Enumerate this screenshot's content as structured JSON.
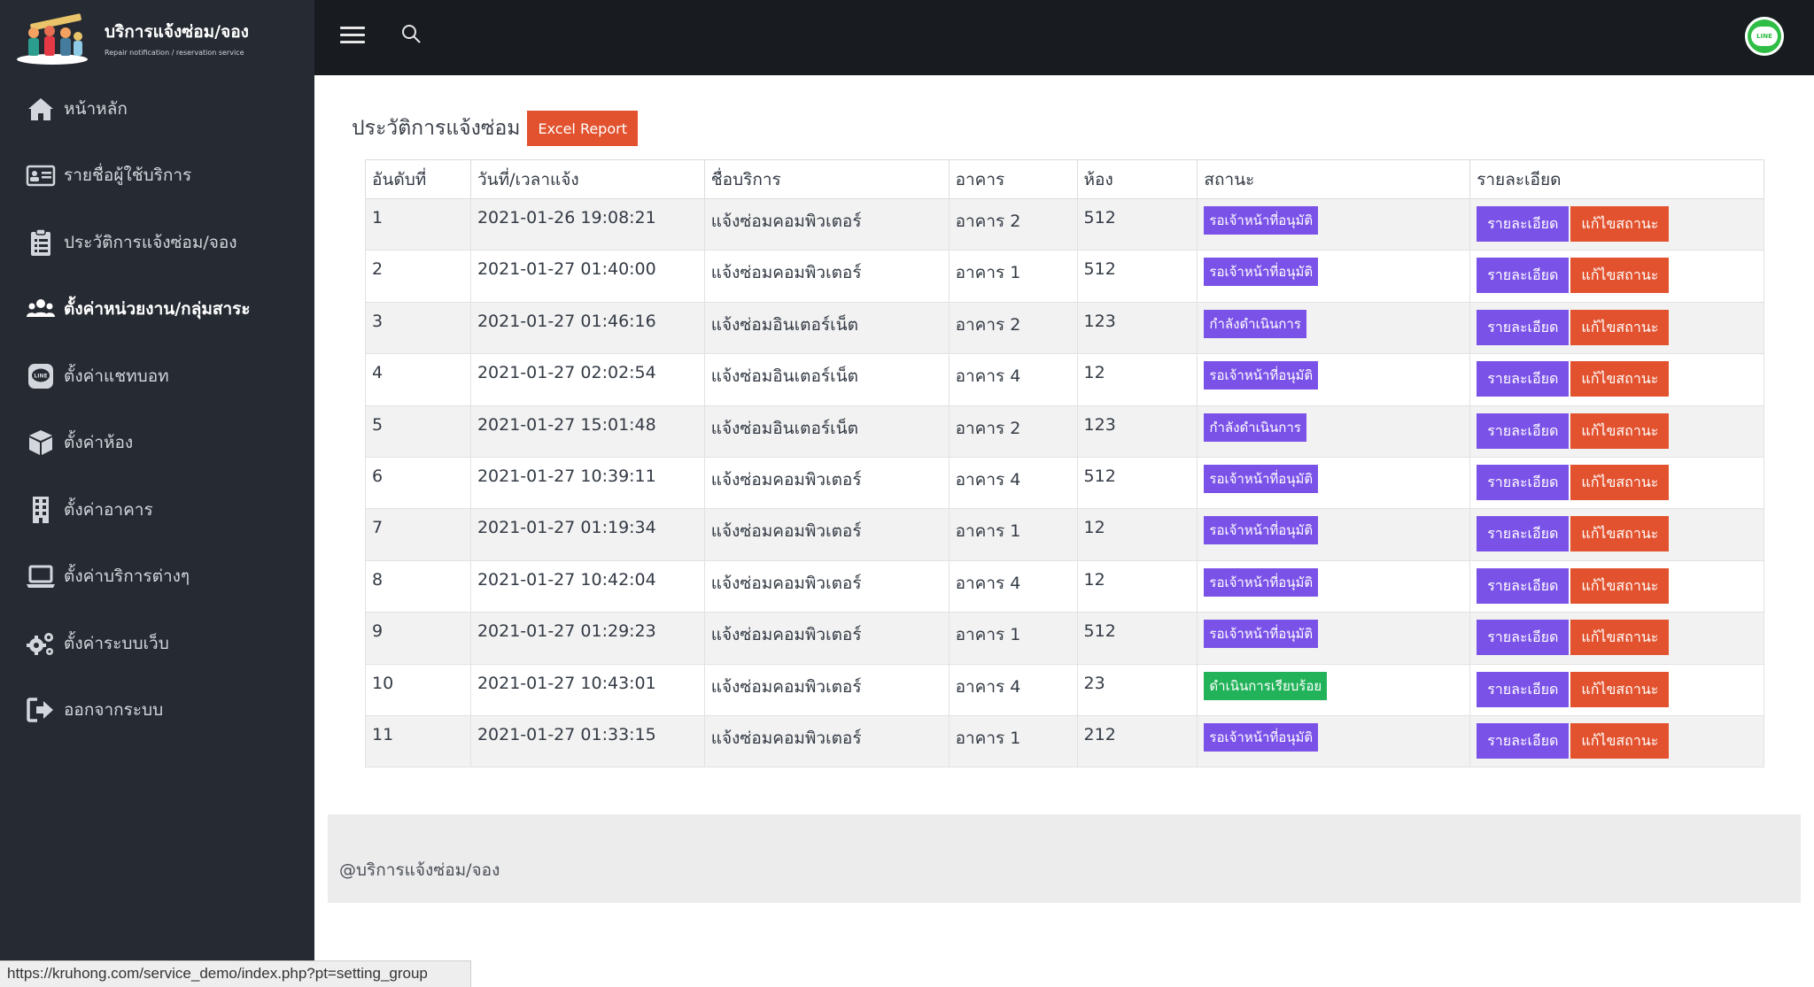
{
  "brand": {
    "title": "บริการแจ้งซ่อม/จอง",
    "subtitle": "Repair notification / reservation service"
  },
  "sidebar": {
    "items": [
      {
        "label": "หน้าหลัก",
        "icon": "home-icon"
      },
      {
        "label": "รายชื่อผู้ใช้บริการ",
        "icon": "id-card-icon"
      },
      {
        "label": "ประวัติการแจ้งซ่อม/จอง",
        "icon": "clipboard-icon"
      },
      {
        "label": "ตั้งค่าหน่วยงาน/กลุ่มสาระ",
        "icon": "users-icon"
      },
      {
        "label": "ตั้งค่าแชทบอท",
        "icon": "line-chat-icon"
      },
      {
        "label": "ตั้งค่าห้อง",
        "icon": "box-icon"
      },
      {
        "label": "ตั้งค่าอาคาร",
        "icon": "building-icon"
      },
      {
        "label": "ตั้งค่าบริการต่างๆ",
        "icon": "laptop-icon"
      },
      {
        "label": "ตั้งค่าระบบเว็บ",
        "icon": "gears-icon"
      },
      {
        "label": "ออกจากระบบ",
        "icon": "sign-out-icon"
      }
    ]
  },
  "topbar": {
    "line_label": "LINE"
  },
  "page": {
    "title": "ประวัติการแจ้งซ่อม",
    "excel_label": "Excel Report"
  },
  "table": {
    "headers": [
      "อันดับที่",
      "วันที่/เวลาแจ้ง",
      "ชื่อบริการ",
      "อาคาร",
      "ห้อง",
      "สถานะ",
      "รายละเอียด"
    ],
    "detail_label": "รายละเอียด",
    "edit_label": "แก้ไขสถานะ",
    "rows": [
      {
        "no": "1",
        "datetime": "2021-01-26 19:08:21",
        "service": "แจ้งซ่อมคอมพิวเตอร์",
        "building": "อาคาร 2",
        "room": "512",
        "status": "รอเจ้าหน้าที่อนุมัติ",
        "status_color": "#7b52e8"
      },
      {
        "no": "2",
        "datetime": "2021-01-27 01:40:00",
        "service": "แจ้งซ่อมคอมพิวเตอร์",
        "building": "อาคาร 1",
        "room": "512",
        "status": "รอเจ้าหน้าที่อนุมัติ",
        "status_color": "#7b52e8"
      },
      {
        "no": "3",
        "datetime": "2021-01-27 01:46:16",
        "service": "แจ้งซ่อมอินเตอร์เน็ต",
        "building": "อาคาร 2",
        "room": "123",
        "status": "กำลังดำเนินการ",
        "status_color": "#7b52e8"
      },
      {
        "no": "4",
        "datetime": "2021-01-27 02:02:54",
        "service": "แจ้งซ่อมอินเตอร์เน็ต",
        "building": "อาคาร 4",
        "room": "12",
        "status": "รอเจ้าหน้าที่อนุมัติ",
        "status_color": "#7b52e8"
      },
      {
        "no": "5",
        "datetime": "2021-01-27 15:01:48",
        "service": "แจ้งซ่อมอินเตอร์เน็ต",
        "building": "อาคาร 2",
        "room": "123",
        "status": "กำลังดำเนินการ",
        "status_color": "#7b52e8"
      },
      {
        "no": "6",
        "datetime": "2021-01-27 10:39:11",
        "service": "แจ้งซ่อมคอมพิวเตอร์",
        "building": "อาคาร 4",
        "room": "512",
        "status": "รอเจ้าหน้าที่อนุมัติ",
        "status_color": "#7b52e8"
      },
      {
        "no": "7",
        "datetime": "2021-01-27 01:19:34",
        "service": "แจ้งซ่อมคอมพิวเตอร์",
        "building": "อาคาร 1",
        "room": "12",
        "status": "รอเจ้าหน้าที่อนุมัติ",
        "status_color": "#7b52e8"
      },
      {
        "no": "8",
        "datetime": "2021-01-27 10:42:04",
        "service": "แจ้งซ่อมคอมพิวเตอร์",
        "building": "อาคาร 4",
        "room": "12",
        "status": "รอเจ้าหน้าที่อนุมัติ",
        "status_color": "#7b52e8"
      },
      {
        "no": "9",
        "datetime": "2021-01-27 01:29:23",
        "service": "แจ้งซ่อมคอมพิวเตอร์",
        "building": "อาคาร 1",
        "room": "512",
        "status": "รอเจ้าหน้าที่อนุมัติ",
        "status_color": "#7b52e8"
      },
      {
        "no": "10",
        "datetime": "2021-01-27 10:43:01",
        "service": "แจ้งซ่อมคอมพิวเตอร์",
        "building": "อาคาร 4",
        "room": "23",
        "status": "ดำเนินการเรียบร้อย",
        "status_color": "#22b35a"
      },
      {
        "no": "11",
        "datetime": "2021-01-27 01:33:15",
        "service": "แจ้งซ่อมคอมพิวเตอร์",
        "building": "อาคาร 1",
        "room": "212",
        "status": "รอเจ้าหน้าที่อนุมัติ",
        "status_color": "#7b52e8"
      }
    ]
  },
  "footer": {
    "text": "@บริการแจ้งซ่อม/จอง"
  },
  "statusbar": {
    "url": "https://kruhong.com/service_demo/index.php?pt=setting_group"
  },
  "colors": {
    "sidebar_bg": "#262b33",
    "topbar_bg": "#181b20",
    "accent_purple": "#7b52e8",
    "accent_orange": "#e2522e",
    "success_green": "#22b35a"
  }
}
